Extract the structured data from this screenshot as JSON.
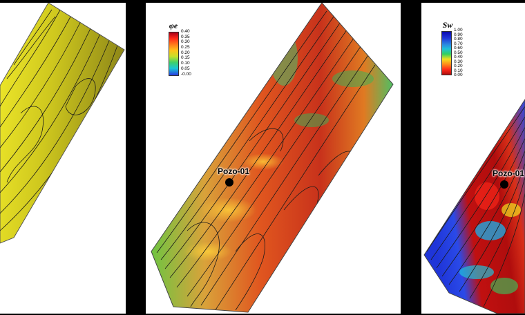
{
  "panels": {
    "porosity": {
      "legend": {
        "symbol": "φe",
        "ticks": [
          "0.40",
          "0.35",
          "0.30",
          "0.25",
          "0.20",
          "0.15",
          "0.10",
          "0.05",
          "-0.00"
        ]
      },
      "well_label": "Pozo-01"
    },
    "saturation": {
      "legend": {
        "symbol": "Sw",
        "ticks": [
          "1.00",
          "0.90",
          "0.80",
          "0.70",
          "0.60",
          "0.50",
          "0.40",
          "0.30",
          "0.20",
          "0.10",
          "0.00"
        ]
      },
      "well_label": "Pozo-01"
    }
  },
  "colors": {
    "background": "#000000",
    "panel": "#ffffff",
    "surface_olive": "#a9a21f",
    "surface_yellow": "#e1d91d",
    "porosity_high": "#c0351b",
    "porosity_mid": "#e07a22",
    "porosity_low": "#3fbf5a",
    "sw_low": "#b00d0d",
    "sw_high": "#1f35d8",
    "contour": "#1a1a1a"
  }
}
